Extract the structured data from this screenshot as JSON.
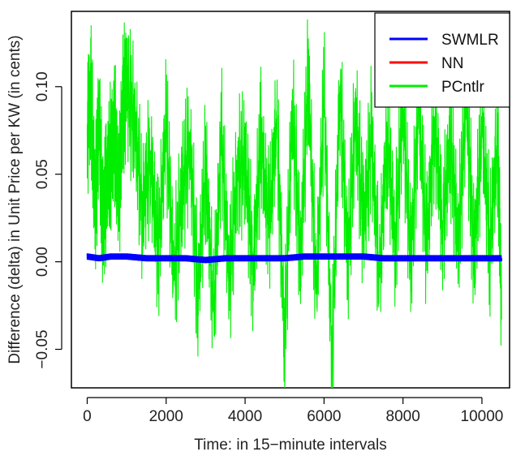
{
  "chart_data": {
    "type": "line",
    "title": "",
    "xlabel": "Time: in 15−minute intervals",
    "ylabel": "Difference (delta) in Unit Price per KW (in cents)",
    "xlim": [
      -400,
      10700
    ],
    "ylim": [
      -0.072,
      0.143
    ],
    "xticks": [
      0,
      2000,
      4000,
      6000,
      8000,
      10000
    ],
    "xtick_labels": [
      "0",
      "2000",
      "4000",
      "6000",
      "8000",
      "10000"
    ],
    "yticks": [
      -0.05,
      0.0,
      0.05,
      0.1
    ],
    "ytick_labels": [
      "−0.05",
      "0.00",
      "0.05",
      "0.10"
    ],
    "grid": false,
    "legend_position": "top-right",
    "series": [
      {
        "name": "SWMLR",
        "color": "#0000ff",
        "x": [
          0,
          300,
          600,
          1000,
          1500,
          2000,
          2500,
          3000,
          3500,
          4000,
          4500,
          5000,
          5500,
          6000,
          6500,
          7000,
          7500,
          8000,
          8500,
          9000,
          9500,
          10000,
          10500
        ],
        "y": [
          0.003,
          0.002,
          0.003,
          0.003,
          0.002,
          0.002,
          0.002,
          0.001,
          0.002,
          0.002,
          0.002,
          0.002,
          0.003,
          0.003,
          0.003,
          0.003,
          0.002,
          0.002,
          0.002,
          0.002,
          0.002,
          0.002,
          0.002
        ]
      },
      {
        "name": "NN",
        "color": "#ff0000",
        "x": [],
        "y": []
      },
      {
        "name": "PCntlr",
        "color": "#00ee00",
        "x": [
          0,
          100,
          200,
          300,
          400,
          500,
          600,
          700,
          800,
          900,
          1000,
          1200,
          1400,
          1600,
          1800,
          2000,
          2200,
          2400,
          2600,
          2800,
          3000,
          3200,
          3400,
          3600,
          3800,
          4000,
          4200,
          4400,
          4600,
          4800,
          5000,
          5200,
          5400,
          5600,
          5800,
          6000,
          6200,
          6400,
          6600,
          6800,
          7000,
          7200,
          7400,
          7600,
          7800,
          8000,
          8200,
          8400,
          8600,
          8800,
          9000,
          9200,
          9400,
          9600,
          9800,
          10000,
          10200,
          10400,
          10500
        ],
        "y": [
          0.078,
          0.094,
          0.03,
          0.08,
          0.02,
          0.05,
          0.06,
          0.075,
          0.035,
          0.088,
          0.1,
          0.08,
          0.03,
          0.06,
          0.005,
          0.08,
          -0.01,
          0.04,
          0.07,
          -0.02,
          0.055,
          -0.03,
          0.07,
          -0.01,
          0.05,
          0.06,
          -0.005,
          0.07,
          0.02,
          0.08,
          -0.045,
          0.09,
          0.0,
          0.108,
          -0.02,
          0.095,
          -0.057,
          0.1,
          0.0,
          0.085,
          0.02,
          0.07,
          -0.01,
          0.075,
          0.01,
          0.09,
          0.0,
          0.088,
          0.01,
          0.08,
          0.02,
          0.07,
          0.01,
          0.096,
          0.0,
          0.08,
          0.01,
          0.07,
          -0.033
        ]
      }
    ]
  }
}
